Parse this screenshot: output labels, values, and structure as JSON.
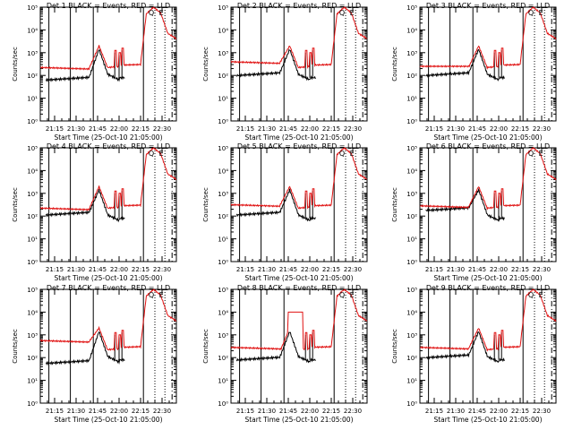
{
  "figure": {
    "grid": "3x3"
  },
  "colors": {
    "events": "#000000",
    "lld": "#e01010",
    "axes": "#000000"
  },
  "chart_data": [
    {
      "type": "line",
      "title": "Det  1  BLACK = Events, RED = LLD",
      "ylabel": "Counts/sec",
      "xlabel": "Start Time (25-Oct-10 21:05:00)",
      "x_ticks": [
        "21:15",
        "21:30",
        "21:45",
        "22:00",
        "22:15",
        "22:30"
      ],
      "y_ticks": [
        "10⁰",
        "10¹",
        "10²",
        "10³",
        "10⁴",
        "10⁵"
      ],
      "ylim": [
        1,
        100000
      ],
      "yscale": "log",
      "markers": [
        "Q",
        "E"
      ],
      "series": [
        {
          "name": "Events"
        },
        {
          "name": "LLD"
        }
      ]
    },
    {
      "type": "line",
      "title": "Det  2  BLACK = Events, RED = LLD",
      "ylabel": "Counts/sec",
      "xlabel": "Start Time (25-Oct-10 21:05:00)",
      "x_ticks": [
        "21:15",
        "21:30",
        "21:45",
        "22:00",
        "22:15",
        "22:30"
      ],
      "y_ticks": [
        "10⁰",
        "10¹",
        "10²",
        "10³",
        "10⁴",
        "10⁵"
      ],
      "ylim": [
        1,
        100000
      ],
      "yscale": "log",
      "markers": [
        "Q",
        "E"
      ],
      "series": [
        {
          "name": "Events"
        },
        {
          "name": "LLD"
        }
      ]
    },
    {
      "type": "line",
      "title": "Det  3  BLACK = Events, RED = LLD",
      "ylabel": "Counts/sec",
      "xlabel": "Start Time (25-Oct-10 21:05:00)",
      "x_ticks": [
        "21:15",
        "21:30",
        "21:45",
        "22:00",
        "22:15",
        "22:30"
      ],
      "y_ticks": [
        "10⁰",
        "10¹",
        "10²",
        "10³",
        "10⁴",
        "10⁵"
      ],
      "ylim": [
        1,
        100000
      ],
      "yscale": "log",
      "markers": [
        "Q",
        "E"
      ],
      "series": [
        {
          "name": "Events"
        },
        {
          "name": "LLD"
        }
      ]
    },
    {
      "type": "line",
      "title": "Det  4  BLACK = Events, RED = LLD",
      "ylabel": "Counts/sec",
      "xlabel": "Start Time (25-Oct-10 21:05:00)",
      "x_ticks": [
        "21:15",
        "21:30",
        "21:45",
        "22:00",
        "22:15",
        "22:30"
      ],
      "y_ticks": [
        "10⁰",
        "10¹",
        "10²",
        "10³",
        "10⁴",
        "10⁵"
      ],
      "ylim": [
        1,
        100000
      ],
      "yscale": "log",
      "markers": [
        "Q",
        "E"
      ],
      "series": [
        {
          "name": "Events"
        },
        {
          "name": "LLD"
        }
      ]
    },
    {
      "type": "line",
      "title": "Det  5  BLACK = Events, RED = LLD",
      "ylabel": "Counts/sec",
      "xlabel": "Start Time (25-Oct-10 21:05:00)",
      "x_ticks": [
        "21:15",
        "21:30",
        "21:45",
        "22:00",
        "22:15",
        "22:30"
      ],
      "y_ticks": [
        "10⁰",
        "10¹",
        "10²",
        "10³",
        "10⁴",
        "10⁵"
      ],
      "ylim": [
        1,
        100000
      ],
      "yscale": "log",
      "markers": [
        "Q",
        "E"
      ],
      "series": [
        {
          "name": "Events"
        },
        {
          "name": "LLD"
        }
      ]
    },
    {
      "type": "line",
      "title": "Det  6  BLACK = Events, RED = LLD",
      "ylabel": "Counts/sec",
      "xlabel": "Start Time (25-Oct-10 21:05:00)",
      "x_ticks": [
        "21:15",
        "21:30",
        "21:45",
        "22:00",
        "22:15",
        "22:30"
      ],
      "y_ticks": [
        "10⁰",
        "10¹",
        "10²",
        "10³",
        "10⁴",
        "10⁵"
      ],
      "ylim": [
        1,
        100000
      ],
      "yscale": "log",
      "markers": [
        "Q",
        "E"
      ],
      "series": [
        {
          "name": "Events"
        },
        {
          "name": "LLD"
        }
      ]
    },
    {
      "type": "line",
      "title": "Det  7  BLACK = Events, RED = LLD",
      "ylabel": "Counts/sec",
      "xlabel": "Start Time (25-Oct-10 21:05:00)",
      "x_ticks": [
        "21:15",
        "21:30",
        "21:45",
        "22:00",
        "22:15",
        "22:30"
      ],
      "y_ticks": [
        "10⁰",
        "10¹",
        "10²",
        "10³",
        "10⁴",
        "10⁵"
      ],
      "ylim": [
        1,
        100000
      ],
      "yscale": "log",
      "markers": [
        "Q",
        "E"
      ],
      "series": [
        {
          "name": "Events"
        },
        {
          "name": "LLD"
        }
      ]
    },
    {
      "type": "line",
      "title": "Det  8  BLACK = Events, RED = LLD",
      "ylabel": "Counts/sec",
      "xlabel": "Start Time (25-Oct-10 21:05:00)",
      "x_ticks": [
        "21:15",
        "21:30",
        "21:45",
        "22:00",
        "22:15",
        "22:30"
      ],
      "y_ticks": [
        "10⁰",
        "10¹",
        "10²",
        "10³",
        "10⁴",
        "10⁵"
      ],
      "ylim": [
        1,
        100000
      ],
      "yscale": "log",
      "markers": [
        "Q",
        "E"
      ],
      "series": [
        {
          "name": "Events"
        },
        {
          "name": "LLD"
        }
      ]
    },
    {
      "type": "line",
      "title": "Det  9  BLACK = Events, RED = LLD",
      "ylabel": "Counts/sec",
      "xlabel": "Start Time (25-Oct-10 21:05:00)",
      "x_ticks": [
        "21:15",
        "21:30",
        "21:45",
        "22:00",
        "22:15",
        "22:30"
      ],
      "y_ticks": [
        "10⁰",
        "10¹",
        "10²",
        "10³",
        "10⁴",
        "10⁵"
      ],
      "ylim": [
        1,
        100000
      ],
      "yscale": "log",
      "markers": [
        "Q",
        "E"
      ],
      "series": [
        {
          "name": "Events"
        },
        {
          "name": "LLD"
        }
      ]
    }
  ]
}
